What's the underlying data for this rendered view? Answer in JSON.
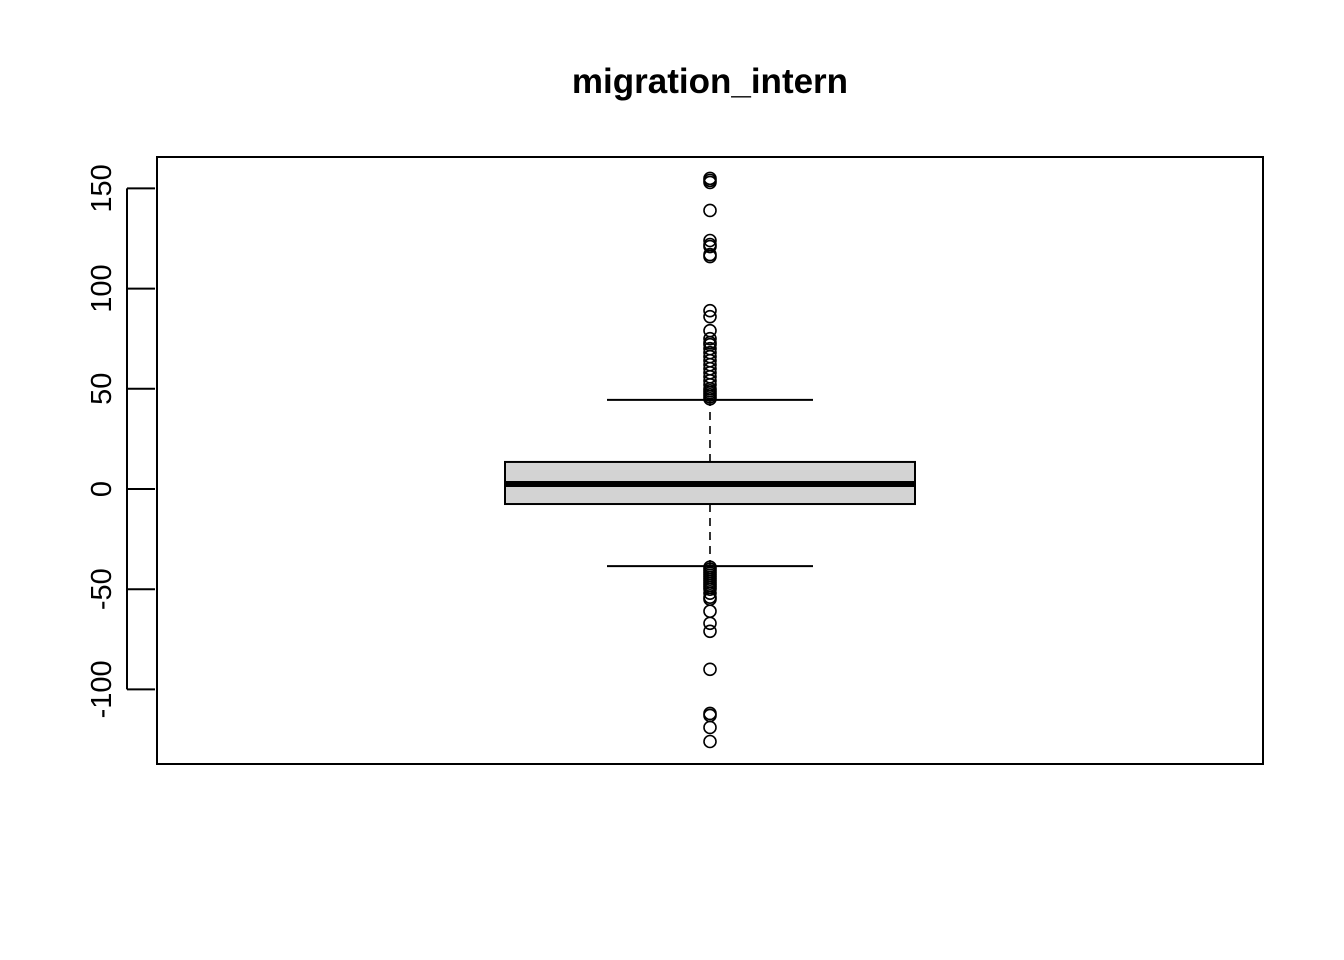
{
  "chart_data": {
    "type": "boxplot",
    "title": "migration_intern",
    "xlabel": "",
    "ylabel": "",
    "ylim": [
      -137,
      166
    ],
    "yticks": [
      -100,
      -50,
      0,
      50,
      100,
      150
    ],
    "ytick_labels": [
      "-100",
      "-50",
      "0",
      "50",
      "100",
      "150"
    ],
    "grid": false,
    "box": {
      "q1": -7.5,
      "median": 2.5,
      "q3": 13.5,
      "whisker_low": -38.5,
      "whisker_high": 44.5,
      "fill": "#d3d3d3"
    },
    "outliers_high": [
      155,
      154,
      153,
      139,
      124,
      122,
      121,
      117,
      116,
      89,
      86,
      79,
      75,
      73,
      72,
      70,
      68,
      66,
      64,
      62,
      60,
      58,
      56,
      54,
      52,
      50,
      49,
      48,
      47,
      46,
      45
    ],
    "outliers_low": [
      -39,
      -40,
      -41,
      -42,
      -43,
      -44,
      -45,
      -46,
      -47,
      -48,
      -49,
      -50,
      -52,
      -54,
      -55,
      -61,
      -67,
      -71,
      -90,
      -112,
      -113,
      -119,
      -126
    ]
  }
}
